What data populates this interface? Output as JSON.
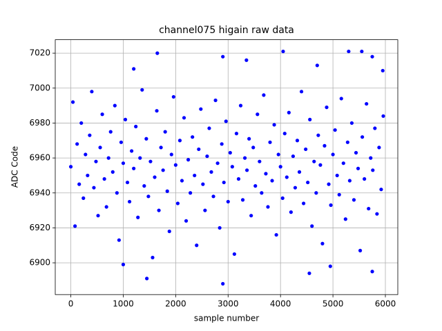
{
  "chart_data": {
    "type": "scatter",
    "title": "channel075 higain raw data",
    "x_label": "sample number",
    "y_label": "ADC Code",
    "color": "#0000ff",
    "grid": true,
    "xlim": [
      -297,
      6237
    ],
    "ylim": [
      6881.8,
      7027.7
    ],
    "xticks": [
      0,
      1000,
      2000,
      3000,
      4000,
      5000,
      6000
    ],
    "yticks": [
      6900,
      6920,
      6940,
      6960,
      6980,
      7000,
      7020
    ],
    "x": [
      0,
      40,
      80,
      120,
      160,
      200,
      240,
      280,
      320,
      360,
      400,
      440,
      480,
      520,
      560,
      600,
      640,
      680,
      720,
      760,
      800,
      840,
      880,
      920,
      960,
      1000,
      1040,
      1080,
      1120,
      1160,
      1200,
      1240,
      1280,
      1320,
      1360,
      1400,
      1440,
      1480,
      1520,
      1560,
      1600,
      1640,
      1680,
      1720,
      1760,
      1800,
      1840,
      1880,
      1920,
      1960,
      2000,
      2040,
      2080,
      2120,
      2160,
      2200,
      2240,
      2280,
      2320,
      2360,
      2400,
      2440,
      2480,
      2520,
      2560,
      2600,
      2640,
      2680,
      2720,
      2760,
      2800,
      2840,
      2880,
      2920,
      2960,
      3000,
      3040,
      3080,
      3120,
      3160,
      3200,
      3240,
      3280,
      3320,
      3360,
      3400,
      3440,
      3480,
      3520,
      3560,
      3600,
      3640,
      3680,
      3720,
      3760,
      3800,
      3840,
      3880,
      3920,
      3960,
      4000,
      4040,
      4080,
      4120,
      4160,
      4200,
      4240,
      4280,
      4320,
      4360,
      4400,
      4440,
      4480,
      4520,
      4560,
      4600,
      4640,
      4680,
      4720,
      4760,
      4800,
      4840,
      4880,
      4920,
      4960,
      5000,
      5040,
      5080,
      5120,
      5160,
      5200,
      5240,
      5280,
      5320,
      5360,
      5400,
      5440,
      5480,
      5520,
      5560,
      5600,
      5640,
      5680,
      5720,
      5760,
      5800,
      5840,
      5880,
      5920,
      5960,
      1650,
      4050,
      5300,
      5550,
      2900,
      5750,
      1450,
      2900,
      4550,
      5750,
      1000,
      4950,
      1200,
      3350,
      5950,
      4700
    ],
    "values": [
      6955,
      6992,
      6921,
      6968,
      6945,
      6980,
      6937,
      6962,
      6950,
      6973,
      6998,
      6943,
      6958,
      6927,
      6966,
      6985,
      6948,
      6932,
      6960,
      6975,
      6952,
      6990,
      6940,
      6913,
      6969,
      6957,
      6982,
      6946,
      6935,
      6964,
      6954,
      6978,
      6926,
      6960,
      6999,
      6944,
      6971,
      6938,
      6958,
      6903,
      6949,
      6987,
      6930,
      6966,
      6953,
      6975,
      6941,
      6918,
      6962,
      6995,
      6956,
      6934,
      6970,
      6947,
      6983,
      6924,
      6959,
      6940,
      6972,
      6950,
      6910,
      6965,
      6988,
      6945,
      6930,
      6961,
      6977,
      6952,
      6938,
      6993,
      6957,
      6920,
      6968,
      6946,
      6981,
      6935,
      6963,
      6955,
      6905,
      6974,
      6948,
      6990,
      6936,
      6960,
      6953,
      6971,
      6927,
      6966,
      6944,
      6985,
      6958,
      6940,
      6996,
      6951,
      6932,
      6969,
      6947,
      6979,
      6916,
      6962,
      6955,
      6937,
      6974,
      6949,
      6986,
      6929,
      6961,
      6943,
      6970,
      6952,
      6998,
      6934,
      6965,
      6946,
      6982,
      6921,
      6958,
      6940,
      6973,
      6956,
      6911,
      6967,
      6989,
      6945,
      6933,
      6962,
      6976,
      6950,
      6939,
      6994,
      6957,
      6925,
      6969,
      6947,
      6980,
      6936,
      6963,
      6954,
      6907,
      6972,
      6948,
      6991,
      6931,
      6960,
      6953,
      6977,
      6928,
      6966,
      6942,
      6984,
      7020,
      7021,
      7021,
      7021,
      7018,
      7018,
      6891,
      6888,
      6894,
      6895,
      6899,
      6898,
      7011,
      7016,
      7010,
      7013
    ]
  }
}
